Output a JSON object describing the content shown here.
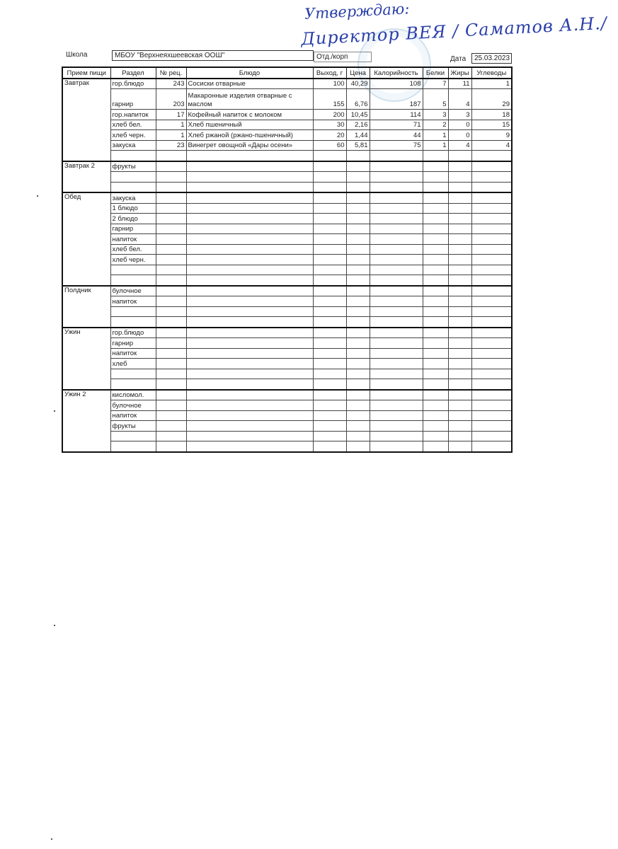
{
  "approval": {
    "line1": "Утверждаю:",
    "line2": "Директор  ВЕЯ  / Саматов А.Н./"
  },
  "header": {
    "school_label": "Школа",
    "school_value": "МБОУ \"Верхнеяхшеевская ООШ\"",
    "dept_label": "Отд./корп",
    "dept_value": "",
    "date_label": "Дата",
    "date_value": "25.03.2023"
  },
  "columns": [
    "Прием пищи",
    "Раздел",
    "№ рец.",
    "Блюдо",
    "Выход, г",
    "Цена",
    "Калорийность",
    "Белки",
    "Жиры",
    "Углеводы"
  ],
  "sections": [
    {
      "meal": "Завтрак",
      "rows": [
        [
          "гор.блюдо",
          "243",
          "Сосиски отварные",
          "100",
          "40,29",
          "108",
          "7",
          "11",
          "1"
        ],
        [
          "гарнир",
          "203",
          "Макаронные изделия отварные с маслом",
          "155",
          "6,76",
          "187",
          "5",
          "4",
          "29"
        ],
        [
          "гор.напиток",
          "17",
          "Кофейный напиток с молоком",
          "200",
          "10,45",
          "114",
          "3",
          "3",
          "18"
        ],
        [
          "хлеб бел.",
          "1",
          "Хлеб пшеничный",
          "30",
          "2,16",
          "71",
          "2",
          "0",
          "15"
        ],
        [
          "хлеб черн.",
          "1",
          "Хлеб ржаной (ржано-пшеничный)",
          "20",
          "1,44",
          "44",
          "1",
          "0",
          "9"
        ],
        [
          "закуска",
          "23",
          "Винегрет овощной «Дары осени»",
          "60",
          "5,81",
          "75",
          "1",
          "4",
          "4"
        ],
        [
          "",
          "",
          "",
          "",
          "",
          "",
          "",
          "",
          ""
        ]
      ]
    },
    {
      "meal": "Завтрак 2",
      "rows": [
        [
          "фрукты",
          "",
          "",
          "",
          "",
          "",
          "",
          "",
          ""
        ],
        [
          "",
          "",
          "",
          "",
          "",
          "",
          "",
          "",
          ""
        ],
        [
          "",
          "",
          "",
          "",
          "",
          "",
          "",
          "",
          ""
        ]
      ]
    },
    {
      "meal": "Обед",
      "rows": [
        [
          "закуска",
          "",
          "",
          "",
          "",
          "",
          "",
          "",
          ""
        ],
        [
          "1 блюдо",
          "",
          "",
          "",
          "",
          "",
          "",
          "",
          ""
        ],
        [
          "2 блюдо",
          "",
          "",
          "",
          "",
          "",
          "",
          "",
          ""
        ],
        [
          "гарнир",
          "",
          "",
          "",
          "",
          "",
          "",
          "",
          ""
        ],
        [
          "напиток",
          "",
          "",
          "",
          "",
          "",
          "",
          "",
          ""
        ],
        [
          "хлеб бел.",
          "",
          "",
          "",
          "",
          "",
          "",
          "",
          ""
        ],
        [
          "хлеб черн.",
          "",
          "",
          "",
          "",
          "",
          "",
          "",
          ""
        ],
        [
          "",
          "",
          "",
          "",
          "",
          "",
          "",
          "",
          ""
        ],
        [
          "",
          "",
          "",
          "",
          "",
          "",
          "",
          "",
          ""
        ]
      ]
    },
    {
      "meal": "Полдник",
      "rows": [
        [
          "булочное",
          "",
          "",
          "",
          "",
          "",
          "",
          "",
          ""
        ],
        [
          "напиток",
          "",
          "",
          "",
          "",
          "",
          "",
          "",
          ""
        ],
        [
          "",
          "",
          "",
          "",
          "",
          "",
          "",
          "",
          ""
        ],
        [
          "",
          "",
          "",
          "",
          "",
          "",
          "",
          "",
          ""
        ]
      ]
    },
    {
      "meal": "Ужин",
      "rows": [
        [
          "гор.блюдо",
          "",
          "",
          "",
          "",
          "",
          "",
          "",
          ""
        ],
        [
          "гарнир",
          "",
          "",
          "",
          "",
          "",
          "",
          "",
          ""
        ],
        [
          "напиток",
          "",
          "",
          "",
          "",
          "",
          "",
          "",
          ""
        ],
        [
          "хлеб",
          "",
          "",
          "",
          "",
          "",
          "",
          "",
          ""
        ],
        [
          "",
          "",
          "",
          "",
          "",
          "",
          "",
          "",
          ""
        ],
        [
          "",
          "",
          "",
          "",
          "",
          "",
          "",
          "",
          ""
        ]
      ]
    },
    {
      "meal": "Ужин 2",
      "rows": [
        [
          "кисломол.",
          "",
          "",
          "",
          "",
          "",
          "",
          "",
          ""
        ],
        [
          "булочное",
          "",
          "",
          "",
          "",
          "",
          "",
          "",
          ""
        ],
        [
          "напиток",
          "",
          "",
          "",
          "",
          "",
          "",
          "",
          ""
        ],
        [
          "фрукты",
          "",
          "",
          "",
          "",
          "",
          "",
          "",
          ""
        ],
        [
          "",
          "",
          "",
          "",
          "",
          "",
          "",
          "",
          ""
        ],
        [
          "",
          "",
          "",
          "",
          "",
          "",
          "",
          "",
          ""
        ]
      ]
    }
  ]
}
